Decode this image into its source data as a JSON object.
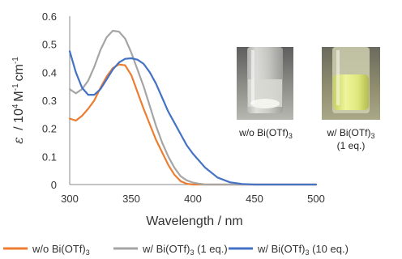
{
  "chart_data": {
    "type": "line",
    "xlabel": "Wavelength / nm",
    "ylabel_symbol": "ε",
    "ylabel_units": "/ 10",
    "ylabel_exp": "4",
    "ylabel_rest": "M",
    "ylabel_m_exp": "-1",
    "ylabel_cm": "cm",
    "ylabel_cm_exp": "-1",
    "xlim": [
      300,
      500
    ],
    "ylim": [
      0,
      0.6
    ],
    "xticks": [
      "300",
      "350",
      "400",
      "450",
      "500"
    ],
    "yticks": [
      "0",
      "0.1",
      "0.2",
      "0.3",
      "0.4",
      "0.5",
      "0.6"
    ],
    "grid": false,
    "legend_position": "bottom",
    "series": [
      {
        "name": "w/o Bi(OTf)3",
        "label_main": "w/o Bi(OTf)",
        "label_sub": "3",
        "label_tail": "",
        "color": "#ED7D31",
        "x": [
          300,
          305,
          310,
          315,
          320,
          325,
          330,
          335,
          340,
          345,
          350,
          355,
          360,
          365,
          370,
          375,
          380,
          385,
          390,
          395,
          400,
          410,
          420,
          450,
          500
        ],
        "y": [
          0.235,
          0.228,
          0.245,
          0.27,
          0.3,
          0.345,
          0.385,
          0.415,
          0.428,
          0.425,
          0.39,
          0.33,
          0.27,
          0.215,
          0.16,
          0.115,
          0.07,
          0.035,
          0.012,
          0.003,
          0.0,
          0.0,
          0.0,
          0.0,
          0.0
        ]
      },
      {
        "name": "w/ Bi(OTf)3 (1 eq.)",
        "label_main": "w/ Bi(OTf)",
        "label_sub": "3",
        "label_tail": " (1 eq.)",
        "color": "#A5A5A5",
        "x": [
          300,
          305,
          310,
          315,
          320,
          325,
          330,
          335,
          340,
          345,
          350,
          355,
          360,
          365,
          370,
          375,
          380,
          385,
          390,
          395,
          400,
          405,
          410,
          420,
          450,
          500
        ],
        "y": [
          0.34,
          0.325,
          0.34,
          0.37,
          0.42,
          0.48,
          0.525,
          0.548,
          0.545,
          0.52,
          0.47,
          0.41,
          0.35,
          0.28,
          0.21,
          0.15,
          0.1,
          0.06,
          0.03,
          0.015,
          0.007,
          0.003,
          0.0,
          0.0,
          0.0,
          0.0
        ]
      },
      {
        "name": "w/ Bi(OTf)3 (10 eq.)",
        "label_main": "w/ Bi(OTf)",
        "label_sub": "3",
        "label_tail": " (10 eq.)",
        "color": "#4472C4",
        "x": [
          300,
          305,
          310,
          315,
          320,
          325,
          330,
          335,
          340,
          345,
          350,
          355,
          360,
          365,
          370,
          375,
          380,
          385,
          390,
          395,
          400,
          410,
          420,
          430,
          440,
          450,
          500
        ],
        "y": [
          0.475,
          0.4,
          0.345,
          0.32,
          0.32,
          0.34,
          0.375,
          0.41,
          0.435,
          0.448,
          0.45,
          0.445,
          0.43,
          0.4,
          0.36,
          0.31,
          0.26,
          0.22,
          0.18,
          0.14,
          0.11,
          0.06,
          0.025,
          0.008,
          0.002,
          0.0,
          0.0
        ]
      }
    ],
    "photos": [
      {
        "caption_main": "w/o Bi(OTf)",
        "caption_sub": "3",
        "caption_line2": ""
      },
      {
        "caption_main": "w/ Bi(OTf)",
        "caption_sub": "3",
        "caption_line2": "(1 eq.)"
      }
    ]
  }
}
